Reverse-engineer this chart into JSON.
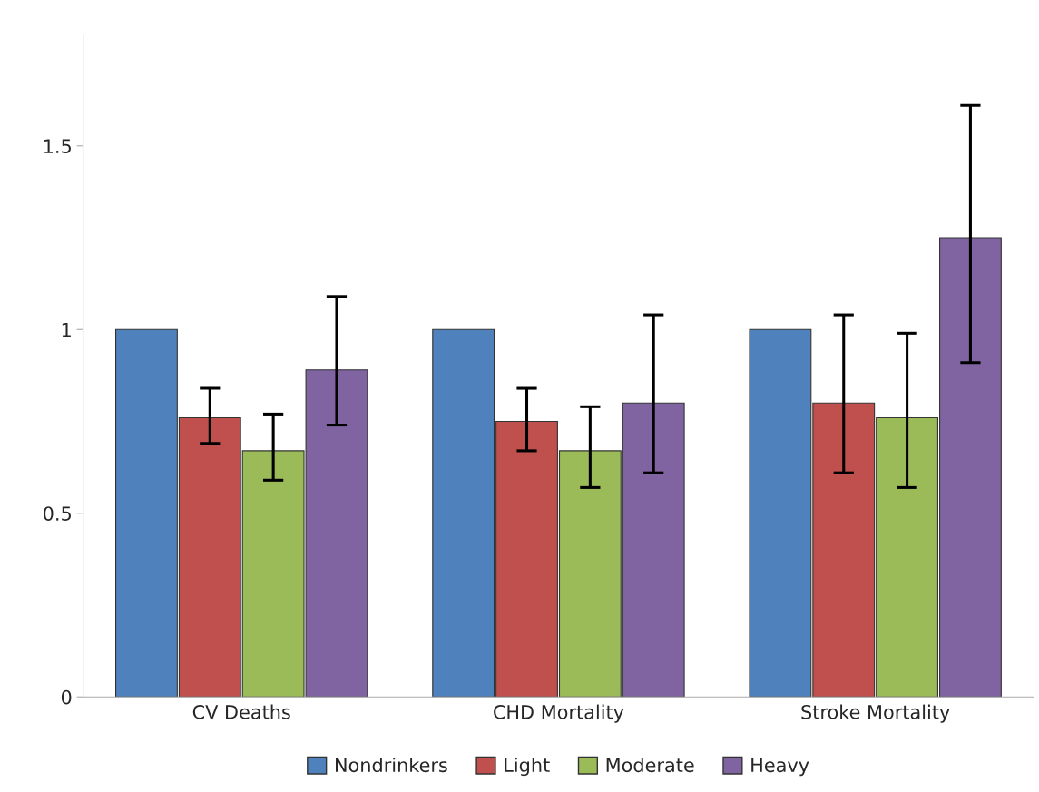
{
  "chart_data": {
    "type": "bar",
    "categories": [
      "CV Deaths",
      "CHD Mortality",
      "Stroke Mortality"
    ],
    "series": [
      {
        "name": "Nondrinkers",
        "color": "#4f81bd",
        "values": [
          1,
          1,
          1
        ]
      },
      {
        "name": "Light",
        "color": "#c0504d",
        "values": [
          0.76,
          0.75,
          0.8
        ],
        "errors": [
          [
            0.69,
            0.84
          ],
          [
            0.67,
            0.84
          ],
          [
            0.61,
            1.04
          ]
        ]
      },
      {
        "name": "Moderate",
        "color": "#9bbb59",
        "values": [
          0.67,
          0.67,
          0.76
        ],
        "errors": [
          [
            0.59,
            0.77
          ],
          [
            0.57,
            0.79
          ],
          [
            0.57,
            0.99
          ]
        ]
      },
      {
        "name": "Heavy",
        "color": "#8064a2",
        "values": [
          0.89,
          0.8,
          1.25
        ],
        "errors": [
          [
            0.74,
            1.09
          ],
          [
            0.61,
            1.04
          ],
          [
            0.91,
            1.61
          ]
        ]
      }
    ],
    "ylim": [
      0,
      1.8
    ],
    "yticks": [
      0,
      {
        "value": 0.5,
        "label": "0.5"
      },
      1,
      {
        "value": 1.5,
        "label": "1.5"
      }
    ],
    "grid": false,
    "legend": "bottom"
  }
}
